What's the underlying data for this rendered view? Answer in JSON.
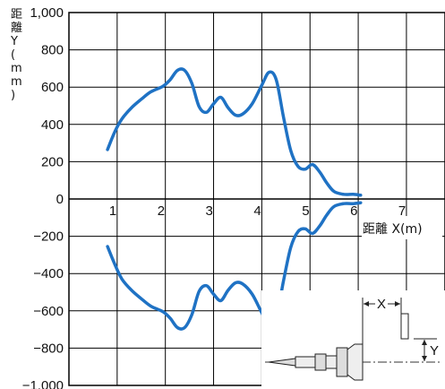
{
  "chart_data": {
    "type": "line",
    "title": "",
    "xlabel": "距離 X(m)",
    "ylabel": "距離 Y (mm)",
    "xlim": [
      0,
      7.8
    ],
    "ylim": [
      -1000,
      1000
    ],
    "x_ticks": [
      1,
      2,
      3,
      4,
      5,
      6,
      7
    ],
    "y_ticks": [
      1000,
      800,
      600,
      400,
      200,
      0,
      -200,
      -400,
      -600,
      -800,
      -1000
    ],
    "y_tick_labels": [
      "1,000",
      "800",
      "600",
      "400",
      "200",
      "0",
      "−200",
      "−400",
      "−600",
      "−800",
      "−1,000"
    ],
    "grid": true,
    "legend": "none",
    "series": [
      {
        "color": "#1f72c4",
        "x": [
          0.8,
          0.95,
          1.1,
          1.3,
          1.5,
          1.7,
          1.95,
          2.1,
          2.25,
          2.4,
          2.55,
          2.7,
          2.85,
          3.0,
          3.15,
          3.3,
          3.45,
          3.6,
          3.8,
          4.0,
          4.15,
          4.3,
          4.45,
          4.6,
          4.75,
          4.9,
          5.05,
          5.2,
          5.35,
          5.5,
          5.7,
          5.9,
          6.05
        ],
        "y": [
          265,
          360,
          430,
          490,
          535,
          575,
          605,
          640,
          690,
          690,
          620,
          495,
          465,
          510,
          545,
          490,
          450,
          455,
          510,
          610,
          680,
          640,
          440,
          260,
          175,
          160,
          185,
          145,
          85,
          40,
          25,
          25,
          20
        ]
      },
      {
        "color": "#1f72c4",
        "x": [
          0.8,
          0.95,
          1.1,
          1.3,
          1.5,
          1.7,
          1.95,
          2.1,
          2.25,
          2.4,
          2.55,
          2.7,
          2.85,
          3.0,
          3.15,
          3.3,
          3.45,
          3.6,
          3.8,
          4.0,
          4.15,
          4.3,
          4.45,
          4.6,
          4.75,
          4.9,
          5.05,
          5.2,
          5.35,
          5.5,
          5.7,
          5.9,
          6.05
        ],
        "y": [
          -255,
          -350,
          -430,
          -490,
          -535,
          -575,
          -605,
          -640,
          -690,
          -690,
          -620,
          -495,
          -465,
          -510,
          -545,
          -490,
          -450,
          -455,
          -510,
          -610,
          -680,
          -640,
          -440,
          -260,
          -175,
          -160,
          -185,
          -145,
          -85,
          -40,
          -25,
          -25,
          -20
        ]
      }
    ]
  },
  "inset": {
    "x_label": "X",
    "y_label": "Y"
  }
}
